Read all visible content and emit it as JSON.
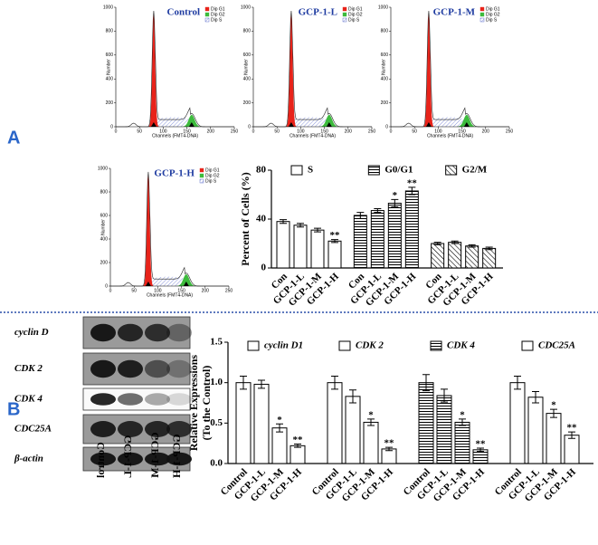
{
  "panel_labels": [
    "A",
    "B"
  ],
  "chart_data": [
    {
      "type": "flow",
      "title": "Control",
      "xlabel": "Channels (FMT4-DNA)",
      "ylabel": "Number",
      "xlim": [
        0,
        250
      ],
      "xticks": [
        0,
        50,
        100,
        150,
        200,
        250
      ],
      "ylim": [
        0,
        1000
      ],
      "yticks": [
        0,
        200,
        400,
        600,
        800,
        1000
      ],
      "legend": [
        {
          "name": "Dip G1",
          "color": "#e8231a"
        },
        {
          "name": "Dip G2",
          "color": "#3dbb3d"
        },
        {
          "name": "Dip S",
          "color": "#3a4fc1"
        }
      ]
    },
    {
      "type": "flow",
      "title": "GCP-1-L",
      "xlabel": "Channels (FMT4-DNA)",
      "ylabel": "Number",
      "xlim": [
        0,
        250
      ],
      "xticks": [
        0,
        50,
        100,
        150,
        200,
        250
      ],
      "ylim": [
        0,
        1000
      ],
      "yticks": [
        0,
        200,
        400,
        600,
        800,
        1000
      ],
      "legend": [
        {
          "name": "Dip G1",
          "color": "#e8231a"
        },
        {
          "name": "Dip G2",
          "color": "#3dbb3d"
        },
        {
          "name": "Dip S",
          "color": "#3a4fc1"
        }
      ]
    },
    {
      "type": "flow",
      "title": "GCP-1-M",
      "xlabel": "Channels (FMT4-DNA)",
      "ylabel": "Number",
      "xlim": [
        0,
        250
      ],
      "xticks": [
        0,
        50,
        100,
        150,
        200,
        250
      ],
      "ylim": [
        0,
        1000
      ],
      "yticks": [
        0,
        200,
        400,
        600,
        800,
        1000
      ],
      "legend": [
        {
          "name": "Dip G1",
          "color": "#e8231a"
        },
        {
          "name": "Dip G2",
          "color": "#3dbb3d"
        },
        {
          "name": "Dip S",
          "color": "#3a4fc1"
        }
      ]
    },
    {
      "type": "flow",
      "title": "GCP-1-H",
      "xlabel": "Channels (FMT4-DNA)",
      "ylabel": "Number",
      "xlim": [
        0,
        250
      ],
      "xticks": [
        0,
        50,
        100,
        150,
        200,
        250
      ],
      "ylim": [
        0,
        1000
      ],
      "yticks": [
        0,
        200,
        400,
        600,
        800,
        1000
      ],
      "legend": [
        {
          "name": "Dip G1",
          "color": "#e8231a"
        },
        {
          "name": "Dip G2",
          "color": "#3dbb3d"
        },
        {
          "name": "Dip S",
          "color": "#3a4fc1"
        }
      ]
    },
    {
      "type": "bar",
      "ylabel": [
        "Percent of Cells (%)"
      ],
      "categories": [
        "Con",
        "GCP-1-L",
        "GCP-1-M",
        "GCP-1-H"
      ],
      "ylim": [
        0,
        80
      ],
      "yticks": [
        0,
        40,
        80
      ],
      "series": [
        {
          "name": "S",
          "pattern": "none",
          "values": [
            38,
            35,
            31,
            22
          ],
          "errors": [
            1.5,
            1.5,
            1.5,
            1.2
          ],
          "significance": [
            null,
            null,
            null,
            "**"
          ]
        },
        {
          "name": "G0/G1",
          "pattern": "horizontal",
          "values": [
            43,
            47,
            53,
            63
          ],
          "errors": [
            2.5,
            1.5,
            3,
            3
          ],
          "significance": [
            null,
            null,
            "*",
            "**"
          ]
        },
        {
          "name": "G2/M",
          "pattern": "diagonal",
          "values": [
            20,
            21,
            18,
            16
          ],
          "errors": [
            1,
            1,
            1,
            1
          ]
        }
      ]
    },
    {
      "type": "bar",
      "ylabel": [
        "Relative Expressions",
        "(To the Control)"
      ],
      "categories": [
        "Control",
        "GCP-1-L",
        "GCP-1-M",
        "GCP-1-H"
      ],
      "ylim": [
        0,
        1.5
      ],
      "yticks": [
        {
          "value": 0,
          "label": "0.0"
        },
        {
          "value": 0.5,
          "label": "0.5"
        },
        {
          "value": 1,
          "label": "1.0"
        },
        {
          "value": 1.5,
          "label": "1.5"
        }
      ],
      "series": [
        {
          "name": "cyclin D1",
          "pattern": "none",
          "values": [
            1.0,
            0.98,
            0.44,
            0.22
          ],
          "errors": [
            0.08,
            0.05,
            0.05,
            0.02
          ],
          "significance": [
            null,
            null,
            "*",
            "**"
          ]
        },
        {
          "name": "CDK 2",
          "pattern": "none",
          "values": [
            1.0,
            0.83,
            0.51,
            0.18
          ],
          "errors": [
            0.08,
            0.08,
            0.04,
            0.02
          ],
          "significance": [
            null,
            null,
            "*",
            "**"
          ]
        },
        {
          "name": "CDK 4",
          "pattern": "horizontal",
          "values": [
            1.0,
            0.84,
            0.51,
            0.17
          ],
          "errors": [
            0.1,
            0.08,
            0.04,
            0.02
          ],
          "significance": [
            null,
            null,
            "*",
            "**"
          ]
        },
        {
          "name": "CDC25A",
          "pattern": "none",
          "values": [
            1.0,
            0.82,
            0.62,
            0.35
          ],
          "errors": [
            0.08,
            0.07,
            0.05,
            0.04
          ],
          "significance": [
            null,
            null,
            "*",
            "**"
          ]
        }
      ]
    }
  ],
  "blot": {
    "rows": [
      "cyclin D",
      "CDK 2",
      "CDK 4",
      "CDC25A",
      "β-actin"
    ],
    "lanes": [
      "Control",
      "GCP-1-L",
      "GCP-1-M",
      "GCP-1-H"
    ]
  }
}
